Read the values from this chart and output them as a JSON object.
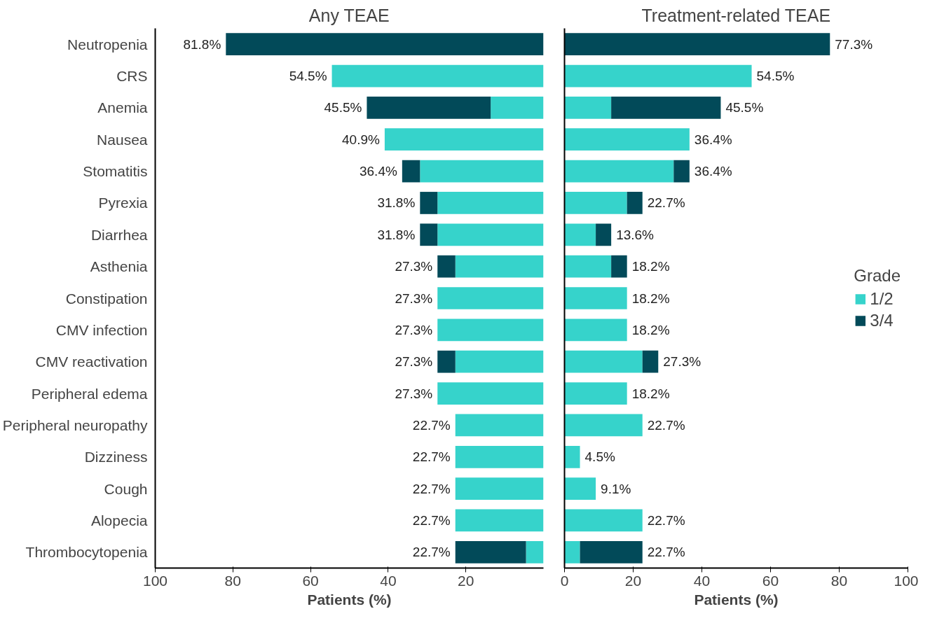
{
  "chart_data": [
    {
      "type": "bar",
      "orientation": "horizontal",
      "stacked": true,
      "title": "Any TEAE",
      "xlabel": "Patients (%)",
      "tick_labels": "xy",
      "categories": [
        "Neutropenia",
        "CRS",
        "Anemia",
        "Nausea",
        "Stomatitis",
        "Pyrexia",
        "Diarrhea",
        "Asthenia",
        "Constipation",
        "CMV infection",
        "CMV reactivation",
        "Peripheral edema",
        "Peripheral neuropathy",
        "Dizziness",
        "Cough",
        "Alopecia",
        "Thrombocytopenia"
      ],
      "xlim": [
        100,
        0
      ],
      "xticks": [
        100,
        80,
        60,
        40,
        20
      ],
      "series": [
        {
          "color": "#36d3cb",
          "values": [
            0,
            54.5,
            13.6,
            40.9,
            31.8,
            27.3,
            27.3,
            22.7,
            27.3,
            27.3,
            22.7,
            27.3,
            22.7,
            22.7,
            22.7,
            22.7,
            4.5
          ]
        },
        {
          "color": "#024a59",
          "values": [
            81.8,
            0,
            31.9,
            0,
            4.6,
            4.5,
            4.5,
            4.6,
            0,
            0,
            4.6,
            0,
            0,
            0,
            0,
            0,
            18.2
          ]
        }
      ],
      "totals": [
        "81.8%",
        "54.5%",
        "45.5%",
        "40.9%",
        "36.4%",
        "31.8%",
        "31.8%",
        "27.3%",
        "27.3%",
        "27.3%",
        "27.3%",
        "27.3%",
        "22.7%",
        "22.7%",
        "22.7%",
        "22.7%",
        "22.7%"
      ]
    },
    {
      "type": "bar",
      "orientation": "horizontal",
      "stacked": true,
      "title": "Treatment-related TEAE",
      "xlabel": "Patients (%)",
      "tick_labels": "x",
      "categories": [
        null,
        null,
        null,
        null,
        null,
        null,
        null,
        null,
        null,
        null,
        null,
        null,
        null,
        null,
        null,
        null,
        null
      ],
      "xlim": [
        0,
        100
      ],
      "xticks": [
        0,
        20,
        40,
        60,
        80,
        100
      ],
      "legend": "right",
      "legend_title": "Grade",
      "series": [
        {
          "name": "1/2",
          "color": "#36d3cb",
          "values": [
            0,
            54.5,
            13.6,
            36.4,
            31.8,
            18.2,
            9.1,
            13.6,
            18.2,
            18.2,
            22.7,
            18.2,
            22.7,
            4.5,
            9.1,
            22.7,
            4.5
          ]
        },
        {
          "name": "3/4",
          "color": "#024a59",
          "values": [
            77.3,
            0,
            31.9,
            0,
            4.6,
            4.5,
            4.5,
            4.6,
            0,
            0,
            4.6,
            0,
            0,
            0,
            0,
            0,
            18.2
          ]
        }
      ],
      "totals": [
        "77.3%",
        "54.5%",
        "45.5%",
        "36.4%",
        "36.4%",
        "22.7%",
        "13.6%",
        "18.2%",
        "18.2%",
        "18.2%",
        "27.3%",
        "18.2%",
        "22.7%",
        "4.5%",
        "9.1%",
        "22.7%",
        "22.7%"
      ]
    }
  ]
}
